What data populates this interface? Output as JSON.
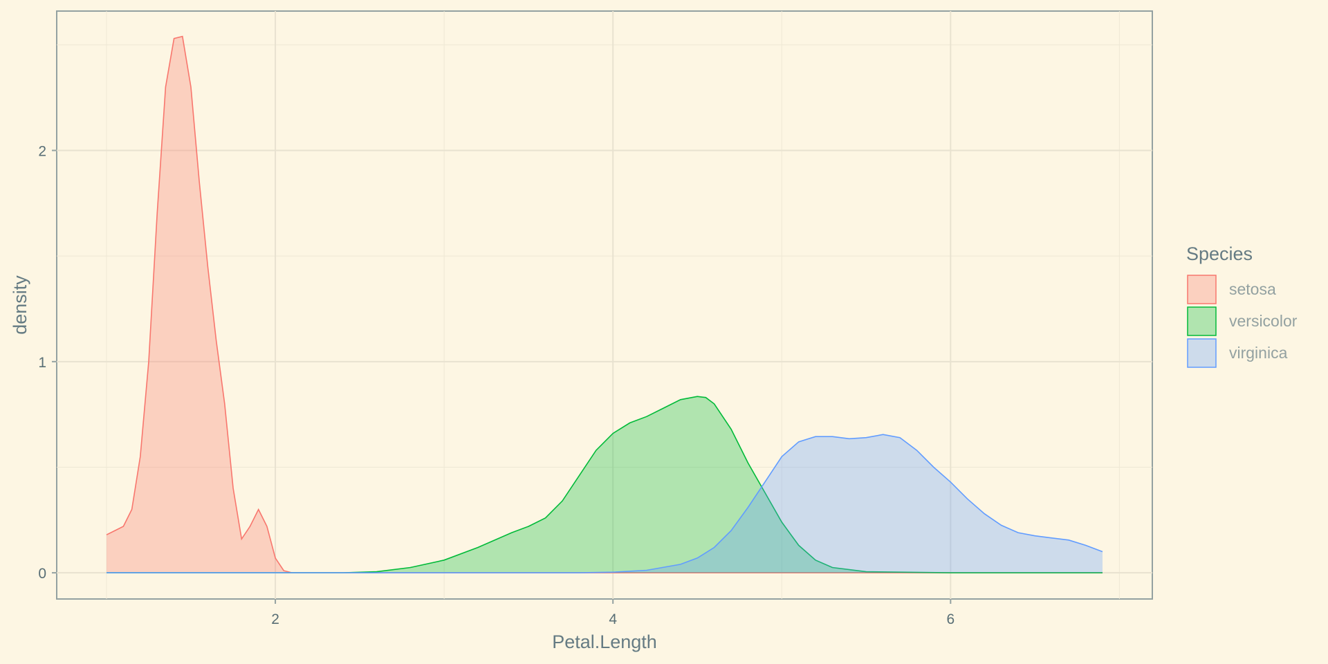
{
  "chart_data": {
    "type": "area",
    "xlabel": "Petal.Length",
    "ylabel": "density",
    "xlim": [
      0.705,
      7.195
    ],
    "ylim": [
      -0.124,
      2.66
    ],
    "x_ticks": [
      2,
      4,
      6
    ],
    "x_tick_labels": [
      "2",
      "4",
      "6"
    ],
    "y_ticks": [
      0,
      1,
      2
    ],
    "y_tick_labels": [
      "0",
      "1",
      "2"
    ],
    "grid": true,
    "legend": {
      "title": "Species",
      "position": "right"
    },
    "series": [
      {
        "name": "setosa",
        "color": "#f8766d",
        "fill": "#f8766d",
        "points": [
          [
            1.0,
            0.18
          ],
          [
            1.05,
            0.2
          ],
          [
            1.1,
            0.22
          ],
          [
            1.15,
            0.3
          ],
          [
            1.2,
            0.55
          ],
          [
            1.25,
            1.0
          ],
          [
            1.3,
            1.7
          ],
          [
            1.35,
            2.3
          ],
          [
            1.4,
            2.53
          ],
          [
            1.45,
            2.54
          ],
          [
            1.5,
            2.3
          ],
          [
            1.55,
            1.85
          ],
          [
            1.6,
            1.45
          ],
          [
            1.65,
            1.1
          ],
          [
            1.7,
            0.8
          ],
          [
            1.75,
            0.4
          ],
          [
            1.8,
            0.16
          ],
          [
            1.85,
            0.22
          ],
          [
            1.9,
            0.3
          ],
          [
            1.95,
            0.22
          ],
          [
            2.0,
            0.07
          ],
          [
            2.05,
            0.01
          ],
          [
            2.1,
            0.0
          ],
          [
            2.5,
            0.0
          ],
          [
            3.0,
            0.0
          ],
          [
            4.0,
            0.0
          ],
          [
            5.0,
            0.0
          ],
          [
            6.0,
            0.0
          ],
          [
            6.9,
            0.0
          ]
        ]
      },
      {
        "name": "versicolor",
        "color": "#00ba38",
        "fill": "#00ba38",
        "points": [
          [
            1.0,
            0.0
          ],
          [
            2.4,
            0.0
          ],
          [
            2.6,
            0.005
          ],
          [
            2.8,
            0.025
          ],
          [
            3.0,
            0.06
          ],
          [
            3.2,
            0.12
          ],
          [
            3.4,
            0.19
          ],
          [
            3.5,
            0.22
          ],
          [
            3.6,
            0.26
          ],
          [
            3.7,
            0.34
          ],
          [
            3.8,
            0.46
          ],
          [
            3.9,
            0.58
          ],
          [
            4.0,
            0.66
          ],
          [
            4.1,
            0.71
          ],
          [
            4.2,
            0.74
          ],
          [
            4.3,
            0.78
          ],
          [
            4.4,
            0.82
          ],
          [
            4.5,
            0.835
          ],
          [
            4.55,
            0.83
          ],
          [
            4.6,
            0.8
          ],
          [
            4.7,
            0.68
          ],
          [
            4.8,
            0.52
          ],
          [
            4.9,
            0.38
          ],
          [
            5.0,
            0.24
          ],
          [
            5.1,
            0.13
          ],
          [
            5.2,
            0.06
          ],
          [
            5.3,
            0.025
          ],
          [
            5.5,
            0.005
          ],
          [
            6.0,
            0.0
          ],
          [
            6.9,
            0.0
          ]
        ]
      },
      {
        "name": "virginica",
        "color": "#619cff",
        "fill": "#619cff",
        "points": [
          [
            1.0,
            0.0
          ],
          [
            3.8,
            0.0
          ],
          [
            4.0,
            0.003
          ],
          [
            4.2,
            0.012
          ],
          [
            4.4,
            0.04
          ],
          [
            4.5,
            0.07
          ],
          [
            4.6,
            0.12
          ],
          [
            4.7,
            0.2
          ],
          [
            4.8,
            0.31
          ],
          [
            4.9,
            0.43
          ],
          [
            5.0,
            0.55
          ],
          [
            5.1,
            0.62
          ],
          [
            5.2,
            0.645
          ],
          [
            5.3,
            0.645
          ],
          [
            5.4,
            0.635
          ],
          [
            5.5,
            0.64
          ],
          [
            5.6,
            0.655
          ],
          [
            5.7,
            0.64
          ],
          [
            5.8,
            0.58
          ],
          [
            5.9,
            0.5
          ],
          [
            6.0,
            0.43
          ],
          [
            6.1,
            0.35
          ],
          [
            6.2,
            0.28
          ],
          [
            6.3,
            0.225
          ],
          [
            6.4,
            0.19
          ],
          [
            6.5,
            0.175
          ],
          [
            6.6,
            0.165
          ],
          [
            6.7,
            0.155
          ],
          [
            6.8,
            0.13
          ],
          [
            6.9,
            0.1
          ]
        ]
      }
    ]
  }
}
